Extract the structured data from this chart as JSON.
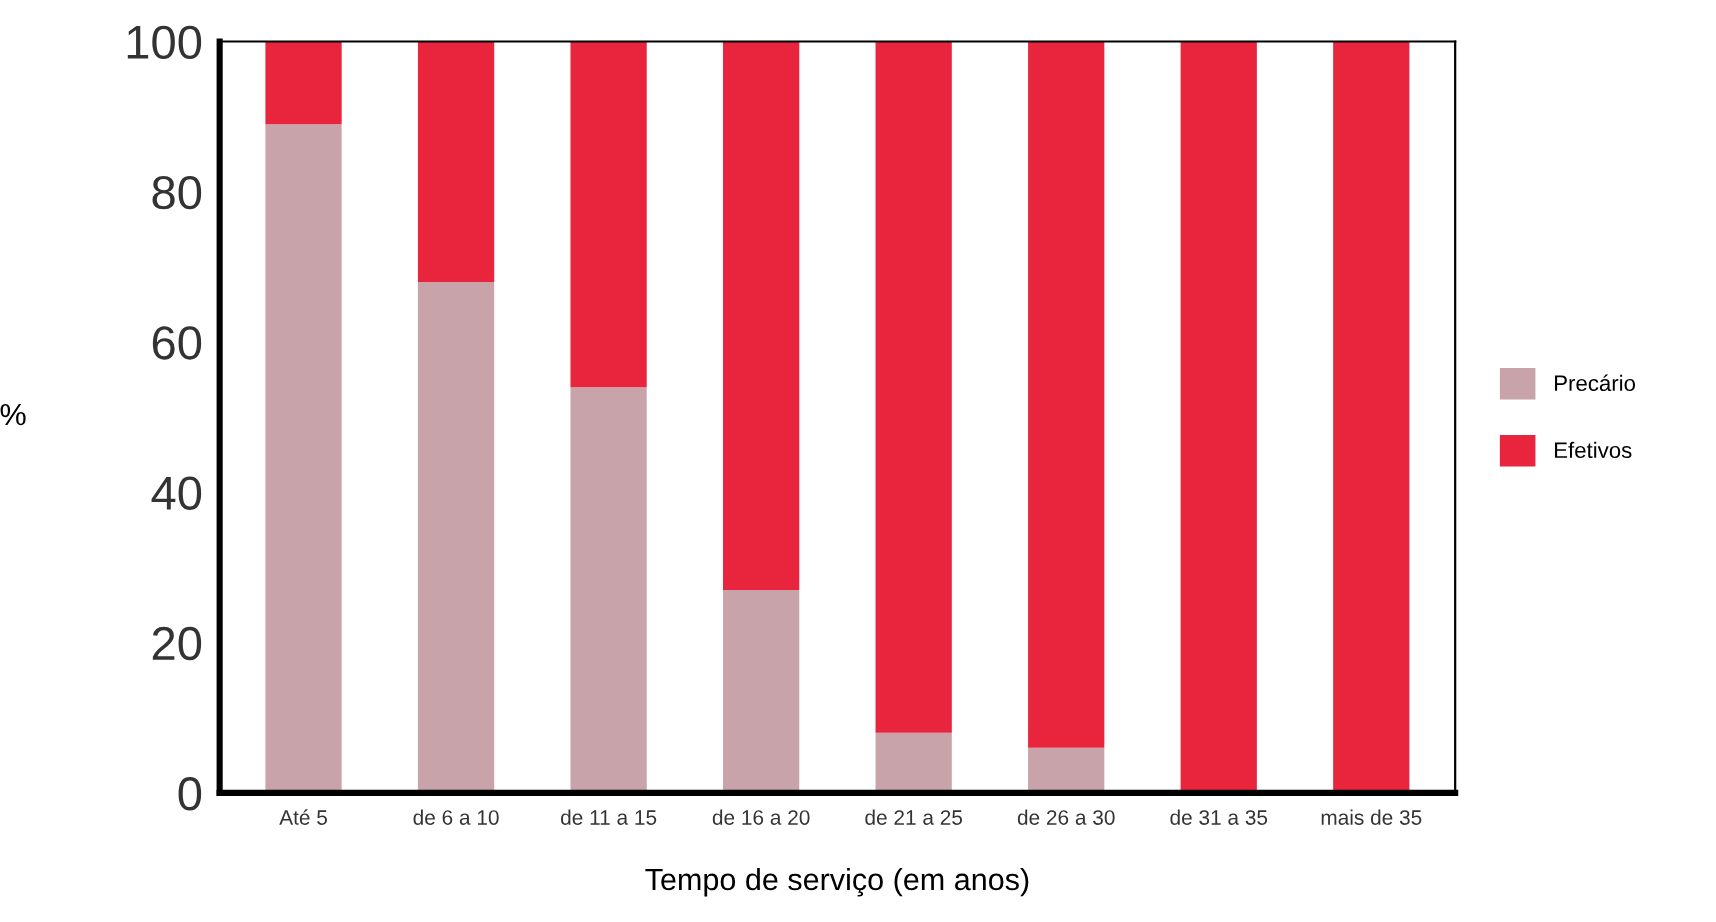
{
  "chart_data": {
    "type": "bar",
    "stacked": true,
    "xlabel": "Tempo de serviço (em anos)",
    "ylabel": "%",
    "categories": [
      "Até 5",
      "de 6 a 10",
      "de 11 a 15",
      "de 16 a 20",
      "de 21 a 25",
      "de 26 a 30",
      "de 31 a 35",
      "mais de 35"
    ],
    "series": [
      {
        "name": "Precário",
        "color": "#c9a3aa",
        "values": [
          89,
          68,
          54,
          27,
          8,
          6,
          0,
          0
        ]
      },
      {
        "name": "Efetivos",
        "color": "#e8253d",
        "values": [
          11,
          32,
          46,
          73,
          92,
          94,
          100,
          100
        ]
      }
    ],
    "ylim": [
      0,
      100
    ],
    "yticks": [
      0,
      20,
      40,
      60,
      80,
      100
    ],
    "grid": false,
    "legend": "right"
  }
}
